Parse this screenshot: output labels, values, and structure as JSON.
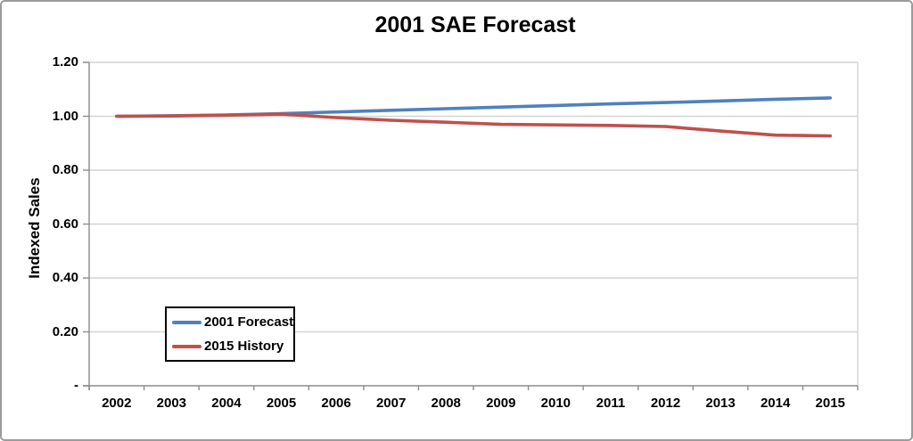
{
  "frame": {
    "background": "#FFFFFF",
    "border_color": "#9B9B9B"
  },
  "chart_data": {
    "type": "line",
    "title": "2001 SAE Forecast",
    "xlabel": "",
    "ylabel": "Indexed Sales",
    "categories": [
      "2002",
      "2003",
      "2004",
      "2005",
      "2006",
      "2007",
      "2008",
      "2009",
      "2010",
      "2011",
      "2012",
      "2013",
      "2014",
      "2015"
    ],
    "series": [
      {
        "name": "2001 Forecast",
        "color": "#4F81BD",
        "values": [
          1.0,
          1.002,
          1.005,
          1.01,
          1.016,
          1.022,
          1.028,
          1.034,
          1.04,
          1.046,
          1.051,
          1.057,
          1.063,
          1.068
        ]
      },
      {
        "name": "2015 History",
        "color": "#C0504D",
        "values": [
          1.0,
          1.001,
          1.004,
          1.008,
          0.995,
          0.985,
          0.978,
          0.97,
          0.968,
          0.966,
          0.962,
          0.945,
          0.93,
          0.927
        ]
      }
    ],
    "y_axis": {
      "min": 0,
      "max": 1.2,
      "tick_step": 0.2,
      "tick_values": [
        0,
        0.2,
        0.4,
        0.6,
        0.8,
        1.0,
        1.2
      ],
      "tick_labels": [
        "-",
        "0.20",
        "0.40",
        "0.60",
        "0.80",
        "1.00",
        "1.20"
      ]
    },
    "grid": true,
    "legend_position": "inside-lower-left",
    "colors": {
      "gridline": "#D3D3D3",
      "axis": "#8C8C8C",
      "text": "#000000"
    }
  }
}
